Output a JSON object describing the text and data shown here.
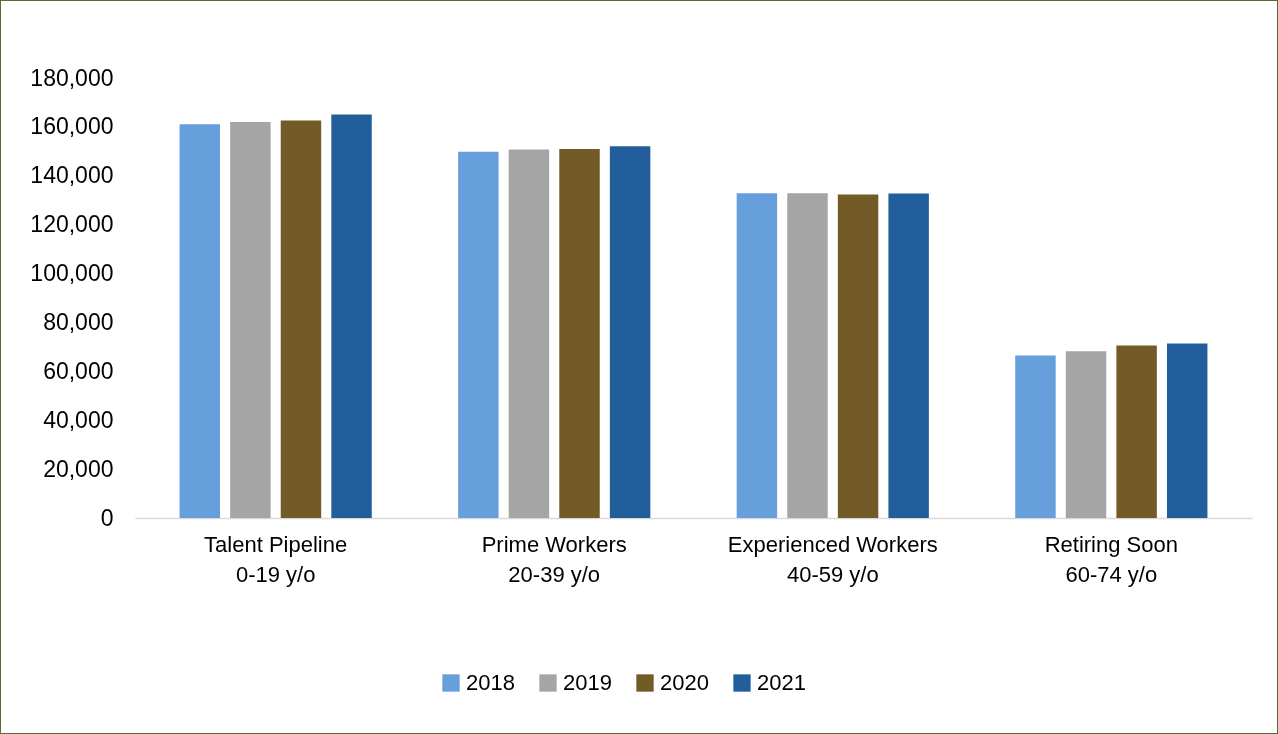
{
  "chart_data": {
    "type": "bar",
    "categories": [
      "Talent Pipeline\n0-19 y/o",
      "Prime Workers\n20-39 y/o",
      "Experienced Workers\n40-59 y/o",
      "Retiring Soon\n60-74 y/o"
    ],
    "series": [
      {
        "name": "2018",
        "color": "#669fdb",
        "values": [
          161100,
          149800,
          132900,
          66500
        ]
      },
      {
        "name": "2019",
        "color": "#a5a5a5",
        "values": [
          162000,
          150800,
          132900,
          68200
        ]
      },
      {
        "name": "2020",
        "color": "#725b27",
        "values": [
          162600,
          151000,
          132300,
          70600
        ]
      },
      {
        "name": "2021",
        "color": "#225e9c",
        "values": [
          165100,
          152100,
          132700,
          71400
        ]
      }
    ],
    "ylim": [
      0,
      180000
    ],
    "yticks": [
      0,
      {
        "value": 20000,
        "label": "20,000"
      },
      {
        "value": 40000,
        "label": "40,000"
      },
      {
        "value": 60000,
        "label": "60,000"
      },
      {
        "value": 80000,
        "label": "80,000"
      },
      {
        "value": 100000,
        "label": "100,000"
      },
      {
        "value": 120000,
        "label": "120,000"
      },
      {
        "value": 140000,
        "label": "140,000"
      },
      {
        "value": 160000,
        "label": "160,000"
      },
      {
        "value": 180000,
        "label": "180,000"
      }
    ],
    "grid": false,
    "legend": "bottom"
  }
}
